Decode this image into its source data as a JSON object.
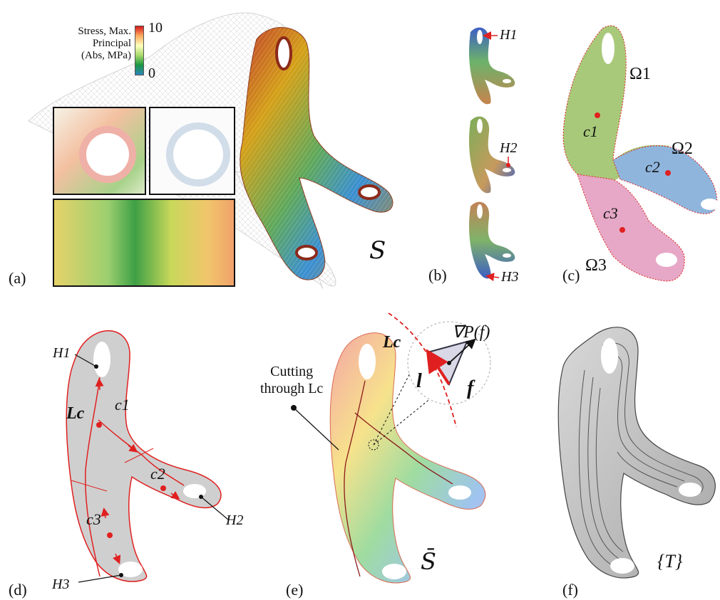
{
  "panels": {
    "a": {
      "label": "(a)",
      "colorbar": {
        "title_lines": [
          "Stress, Max.",
          "Principal",
          "(Abs, MPa)"
        ],
        "max_tick": "10",
        "min_tick": "0",
        "colors": [
          "#d7191c",
          "#fdae61",
          "#ffffbf",
          "#a6d96a",
          "#1a9641",
          "#2b83ba"
        ]
      },
      "surface_label": "S"
    },
    "b": {
      "label": "(b)",
      "hole_labels": [
        "H1",
        "H2",
        "H3"
      ]
    },
    "c": {
      "label": "(c)",
      "regions": [
        "Ω1",
        "Ω2",
        "Ω3"
      ],
      "centers": [
        "c1",
        "c2",
        "c3"
      ]
    },
    "d": {
      "label": "(d)",
      "hole_labels": [
        "H1",
        "H2",
        "H3"
      ],
      "curve_label": "Lc",
      "centers": [
        "c1",
        "c2",
        "c3"
      ]
    },
    "e": {
      "label": "(e)",
      "annotation_line1": "Cutting",
      "annotation_line2": "through Lc",
      "curve_label": "Lc",
      "gradient_label": "∇P(f)",
      "vector_l": "l",
      "face_f": "f",
      "surface_label": "S̄"
    },
    "f": {
      "label": "(f)",
      "toolpath_label": "{T}"
    }
  },
  "colors": {
    "accent_red": "#e02020",
    "region1": "#a9c97a",
    "region2": "#8fb5dd",
    "region3": "#e6a8c6",
    "gray_surface": "#c9c9c9"
  }
}
